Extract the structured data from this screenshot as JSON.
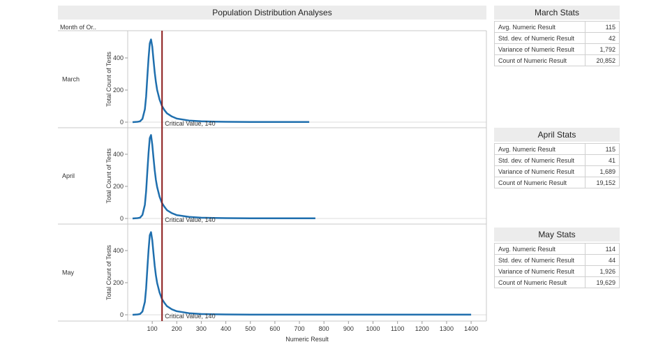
{
  "header": {
    "title": "Population Distribution Analyses",
    "row_header": "Month of Or.."
  },
  "colors": {
    "series": "#1f6fae",
    "critical": "#8b1a1a",
    "header_bg": "#ececec"
  },
  "stats": [
    {
      "title": "March Stats",
      "rows": [
        {
          "label": "Avg. Numeric Result",
          "value": "115"
        },
        {
          "label": "Std. dev. of Numeric Result",
          "value": "42"
        },
        {
          "label": "Variance of Numeric Result",
          "value": "1,792"
        },
        {
          "label": "Count of Numeric Result",
          "value": "20,852"
        }
      ]
    },
    {
      "title": "April Stats",
      "rows": [
        {
          "label": "Avg. Numeric Result",
          "value": "115"
        },
        {
          "label": "Std. dev. of Numeric Result",
          "value": "41"
        },
        {
          "label": "Variance of Numeric Result",
          "value": "1,689"
        },
        {
          "label": "Count of Numeric Result",
          "value": "19,152"
        }
      ]
    },
    {
      "title": "May Stats",
      "rows": [
        {
          "label": "Avg. Numeric Result",
          "value": "114"
        },
        {
          "label": "Std. dev. of Numeric Result",
          "value": "44"
        },
        {
          "label": "Variance of Numeric Result",
          "value": "1,926"
        },
        {
          "label": "Count of Numeric Result",
          "value": "19,629"
        }
      ]
    }
  ],
  "chart_data": {
    "type": "line",
    "title": "Population Distribution Analyses",
    "xlabel": "Numeric Result",
    "ylabel": "Total Count of Tests",
    "xlim": [
      0,
      1450
    ],
    "ylim": [
      0,
      560
    ],
    "xticks": [
      "100",
      "200",
      "300",
      "400",
      "500",
      "600",
      "700",
      "800",
      "900",
      "1000",
      "1100",
      "1200",
      "1300",
      "1400"
    ],
    "yticks": [
      "0",
      "200",
      "400"
    ],
    "grid": false,
    "reference_line": {
      "x": 140,
      "label": "Critical Value, 140"
    },
    "series": [
      {
        "name": "March",
        "x": [
          20,
          40,
          50,
          60,
          70,
          75,
          80,
          85,
          90,
          95,
          100,
          105,
          110,
          115,
          120,
          130,
          140,
          150,
          160,
          180,
          200,
          250,
          300,
          350,
          400,
          500,
          740
        ],
        "y": [
          0,
          2,
          5,
          20,
          80,
          160,
          280,
          400,
          490,
          515,
          470,
          390,
          310,
          250,
          200,
          140,
          100,
          75,
          55,
          35,
          22,
          10,
          5,
          3,
          2,
          1,
          1
        ]
      },
      {
        "name": "April",
        "x": [
          20,
          40,
          50,
          60,
          70,
          75,
          80,
          85,
          90,
          95,
          100,
          105,
          110,
          115,
          120,
          130,
          140,
          150,
          160,
          180,
          200,
          250,
          300,
          350,
          400,
          500,
          765
        ],
        "y": [
          0,
          2,
          5,
          22,
          85,
          170,
          290,
          410,
          500,
          520,
          460,
          380,
          300,
          240,
          195,
          135,
          95,
          72,
          52,
          33,
          21,
          10,
          5,
          3,
          2,
          1,
          1
        ]
      },
      {
        "name": "May",
        "x": [
          20,
          40,
          50,
          60,
          70,
          75,
          80,
          85,
          90,
          95,
          100,
          105,
          110,
          115,
          120,
          130,
          140,
          150,
          160,
          180,
          200,
          250,
          300,
          350,
          400,
          500,
          1400
        ],
        "y": [
          0,
          2,
          5,
          20,
          80,
          165,
          285,
          405,
          495,
          515,
          465,
          385,
          305,
          245,
          198,
          138,
          98,
          74,
          54,
          34,
          22,
          10,
          5,
          3,
          2,
          1,
          1
        ]
      }
    ]
  }
}
